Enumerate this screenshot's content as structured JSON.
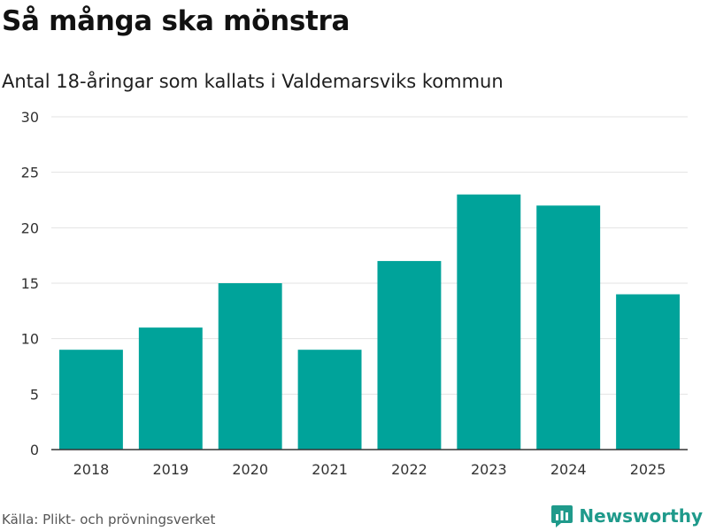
{
  "chart_data": {
    "type": "bar",
    "title": "Så många ska mönstra",
    "subtitle": "Antal 18-åringar som kallats i Valdemarsviks kommun",
    "categories": [
      "2018",
      "2019",
      "2020",
      "2021",
      "2022",
      "2023",
      "2024",
      "2025"
    ],
    "values": [
      9,
      11,
      15,
      9,
      17,
      23,
      22,
      14
    ],
    "ylim": [
      0,
      30
    ],
    "yticks": [
      0,
      5,
      10,
      15,
      20,
      25,
      30
    ],
    "xlabel": "",
    "ylabel": "",
    "grid": true,
    "bar_color": "#00a39a"
  },
  "footer": {
    "source": "Källa: Plikt- och prövningsverket",
    "brand": "Newsworthy",
    "brand_icon": "newsworthy-logo-icon",
    "brand_color": "#1f9a8b"
  }
}
